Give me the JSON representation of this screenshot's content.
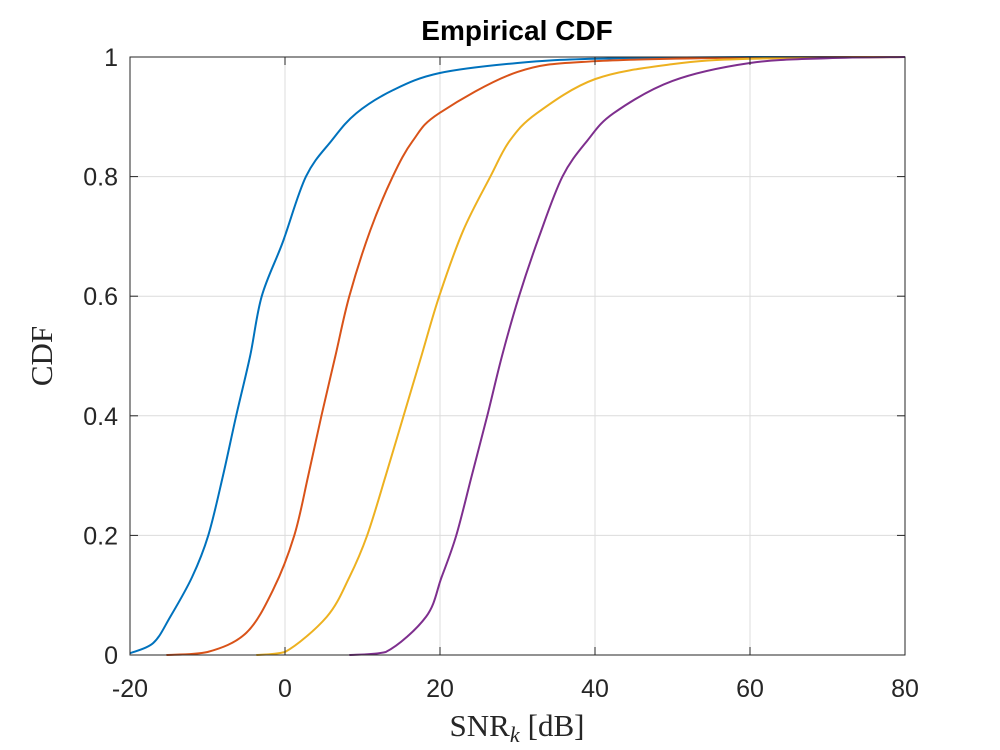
{
  "chart_data": {
    "type": "line",
    "title": "Empirical CDF",
    "xlabel": "SNR_k [dB]",
    "xlabel_main": "SNR",
    "xlabel_sub": "k",
    "xlabel_unit": "[dB]",
    "ylabel": "CDF",
    "xlim": [
      -20,
      80
    ],
    "ylim": [
      0,
      1
    ],
    "xticks": [
      -20,
      0,
      20,
      40,
      60,
      80
    ],
    "yticks": [
      0,
      0.2,
      0.4,
      0.6,
      0.8,
      1
    ],
    "xtick_labels": [
      "-20",
      "0",
      "20",
      "40",
      "60",
      "80"
    ],
    "ytick_labels": [
      "0",
      "0.2",
      "0.4",
      "0.6",
      "0.8",
      "1"
    ],
    "grid": true,
    "legend": "none",
    "series": [
      {
        "color": "#0072BD",
        "x": [
          -20,
          -17,
          -14.8,
          -12,
          -9.9,
          -8,
          -6.3,
          -4.5,
          -3,
          -0.3,
          2.7,
          6,
          9.2,
          14,
          19.9,
          30,
          40,
          60,
          80
        ],
        "y": [
          0.003,
          0.02,
          0.064,
          0.13,
          0.2,
          0.3,
          0.4,
          0.5,
          0.6,
          0.69,
          0.8,
          0.86,
          0.906,
          0.945,
          0.973,
          0.99,
          0.997,
          1.0,
          1.0
        ]
      },
      {
        "color": "#D95319",
        "x": [
          -15.3,
          -10,
          -5,
          -1.5,
          1.2,
          3,
          4.7,
          6.5,
          8.3,
          11,
          13.9,
          16.5,
          19.9,
          30,
          40,
          60,
          80
        ],
        "y": [
          0,
          0.005,
          0.037,
          0.11,
          0.2,
          0.3,
          0.4,
          0.5,
          0.6,
          0.71,
          0.8,
          0.86,
          0.906,
          0.975,
          0.993,
          0.999,
          1.0
        ]
      },
      {
        "color": "#EDB120",
        "x": [
          -3.7,
          0,
          5.4,
          8.3,
          10.6,
          13,
          15.3,
          17.6,
          19.9,
          23,
          26.5,
          29,
          32.5,
          40,
          50,
          60,
          80
        ],
        "y": [
          0,
          0.005,
          0.064,
          0.13,
          0.2,
          0.3,
          0.4,
          0.5,
          0.6,
          0.71,
          0.8,
          0.86,
          0.906,
          0.963,
          0.988,
          0.997,
          1.0
        ]
      },
      {
        "color": "#7E2F8E",
        "x": [
          8.3,
          13,
          18.2,
          20.2,
          22.1,
          24.1,
          26.1,
          28,
          30.2,
          32.8,
          35.8,
          39,
          42.4,
          50,
          60,
          70,
          80
        ],
        "y": [
          0,
          0.005,
          0.064,
          0.13,
          0.2,
          0.3,
          0.4,
          0.5,
          0.6,
          0.7,
          0.8,
          0.86,
          0.906,
          0.96,
          0.99,
          0.998,
          1.0
        ]
      }
    ]
  }
}
